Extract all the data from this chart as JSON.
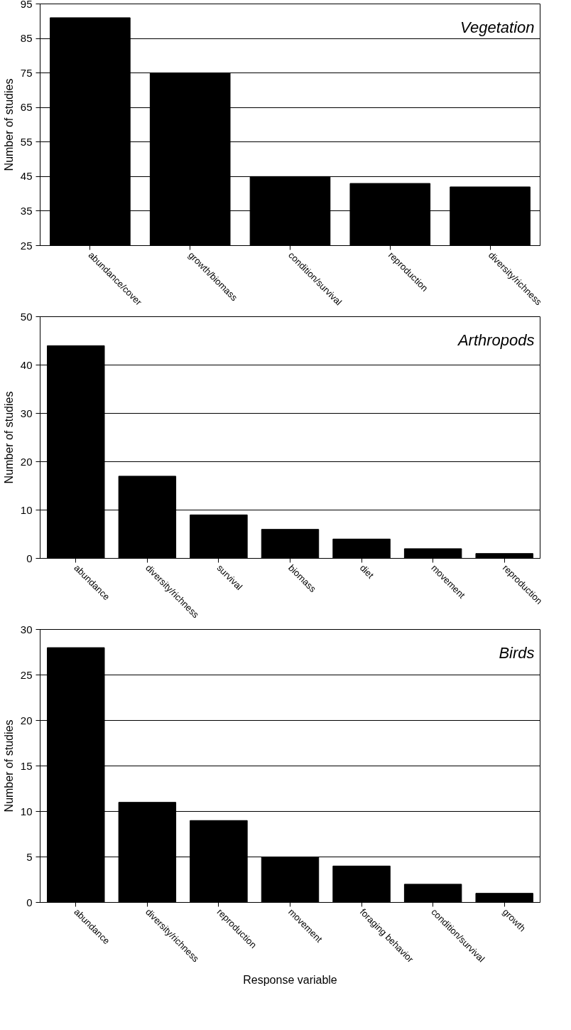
{
  "chart_data": [
    {
      "type": "bar",
      "categories": [
        "abundance/cover",
        "growth/biomass",
        "condition/survival",
        "reproduction",
        "diversity/richness"
      ],
      "values": [
        91,
        75,
        45,
        43,
        42
      ],
      "color": "#000000",
      "ylabel": "Number of studies",
      "ylim": [
        25,
        95
      ],
      "yticks": [
        25,
        35,
        45,
        55,
        65,
        75,
        85,
        95
      ],
      "grid": "y",
      "annotations": [
        "Vegetation"
      ]
    },
    {
      "type": "bar",
      "categories": [
        "abundance",
        "diversity/richness",
        "survival",
        "biomass",
        "diet",
        "movement",
        "reproduction"
      ],
      "values": [
        44,
        17,
        9,
        6,
        4,
        2,
        1
      ],
      "color": "#000000",
      "ylabel": "Number of studies",
      "ylim": [
        0,
        50
      ],
      "yticks": [
        0,
        10,
        20,
        30,
        40,
        50
      ],
      "grid": "y",
      "annotations": [
        "Arthropods"
      ]
    },
    {
      "type": "bar",
      "categories": [
        "abundance",
        "diversity/richness",
        "reproduction",
        "movement",
        "foraging behavior",
        "condition/survival",
        "growth"
      ],
      "values": [
        28,
        11,
        9,
        5,
        4,
        2,
        1
      ],
      "color": "#000000",
      "ylabel": "Number of studies",
      "xlabel": "Response variable",
      "ylim": [
        0,
        30
      ],
      "yticks": [
        0,
        5,
        10,
        15,
        20,
        25,
        30
      ],
      "grid": "y",
      "annotations": [
        "Birds"
      ]
    }
  ]
}
